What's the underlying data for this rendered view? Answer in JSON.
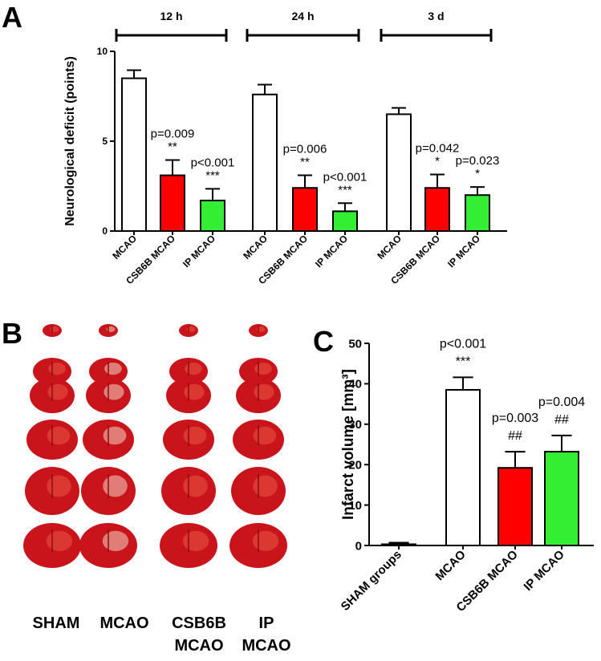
{
  "chart_data": [
    {
      "type": "bar",
      "panel_label": "A",
      "ylabel": "Neurological deficit (points)",
      "groups": [
        "12 h",
        "24 h",
        "3 d"
      ],
      "categories": [
        "MCAO",
        "CSB6B MCAO",
        "IP MCAO",
        "MCAO",
        "CSB6B MCAO",
        "IP MCAO",
        "MCAO",
        "CSB6B MCAO",
        "IP MCAO"
      ],
      "values": [
        8.5,
        3.1,
        1.7,
        7.6,
        2.4,
        1.1,
        6.5,
        2.4,
        2.0
      ],
      "errors": [
        0.45,
        0.85,
        0.65,
        0.55,
        0.7,
        0.45,
        0.35,
        0.75,
        0.45
      ],
      "colors": [
        "#ffffff",
        "#ff0000",
        "#33ee33",
        "#ffffff",
        "#ff0000",
        "#33ee33",
        "#ffffff",
        "#ff0000",
        "#33ee33"
      ],
      "p_values": [
        null,
        "p=0.009",
        "p<0.001",
        null,
        "p=0.006",
        "p<0.001",
        null,
        "p=0.042",
        "p=0.023"
      ],
      "stars": [
        null,
        "**",
        "***",
        null,
        "**",
        "***",
        null,
        "*",
        "*"
      ],
      "ylim": [
        0,
        10
      ],
      "yticks": [
        0,
        5,
        10
      ]
    },
    {
      "type": "bar",
      "panel_label": "C",
      "ylabel": "Infarct volume [mm³]",
      "categories": [
        "SHAM groups",
        "MCAO",
        "CSB6B MCAO",
        "IP MCAO"
      ],
      "values": [
        0.3,
        38.5,
        19.2,
        23.2
      ],
      "errors": [
        0.4,
        3.1,
        4.0,
        4.0
      ],
      "colors": [
        "#ffffff",
        "#ffffff",
        "#ff0000",
        "#33ee33"
      ],
      "p_values": [
        null,
        "p<0.001",
        "p=0.003",
        "p=0.004"
      ],
      "stars": [
        null,
        "***",
        "##",
        "##"
      ],
      "ylim": [
        0,
        50
      ],
      "yticks": [
        0,
        10,
        20,
        30,
        40,
        50
      ]
    }
  ],
  "panel_b": {
    "panel_label": "B",
    "columns": [
      [
        "SHAM"
      ],
      [
        "MCAO"
      ],
      [
        "CSB6B",
        "MCAO"
      ],
      [
        "IP",
        "MCAO"
      ]
    ]
  }
}
